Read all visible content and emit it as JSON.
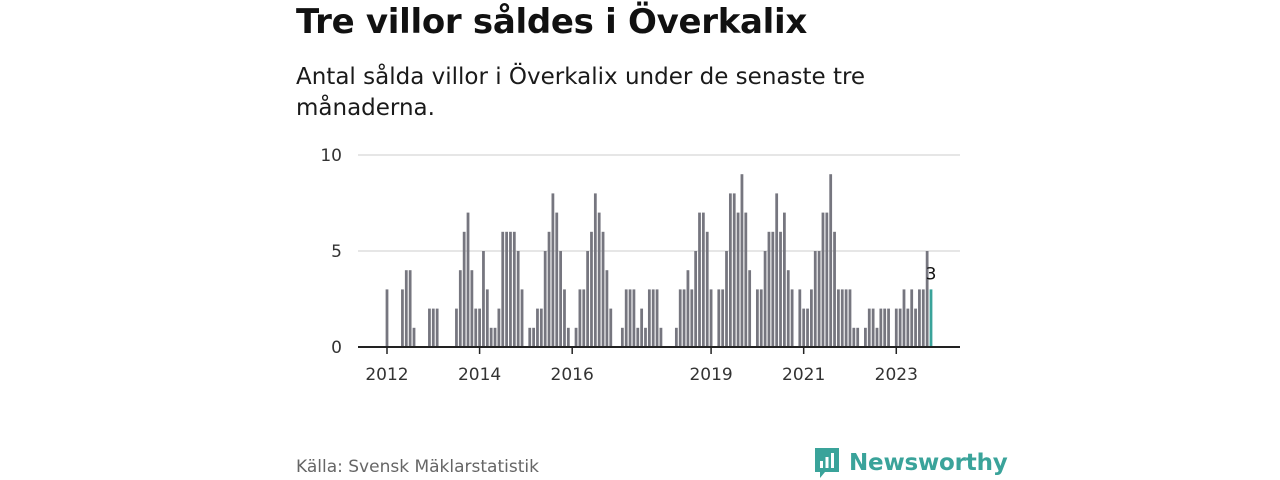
{
  "title": "Tre villor såldes i Överkalix",
  "subtitle": "Antal sålda villor i Överkalix under de senaste tre månaderna.",
  "source": "Källa: Svensk Mäklarstatistik",
  "brand": "Newsworthy",
  "colors": {
    "bar": "#76767f",
    "highlight": "#3aa39a",
    "grid": "#d6d6d6",
    "axis": "#222222"
  },
  "chart_data": {
    "type": "bar",
    "ylim": [
      0,
      10
    ],
    "yticks": [
      0,
      5,
      10
    ],
    "start": "2012-01",
    "x_tick_labels": [
      {
        "label": "2012",
        "index": 0
      },
      {
        "label": "2014",
        "index": 24
      },
      {
        "label": "2016",
        "index": 48
      },
      {
        "label": "2019",
        "index": 84
      },
      {
        "label": "2021",
        "index": 108
      },
      {
        "label": "2023",
        "index": 132
      }
    ],
    "values": [
      3,
      0,
      0,
      0,
      3,
      4,
      4,
      1,
      0,
      0,
      0,
      2,
      2,
      2,
      0,
      0,
      0,
      0,
      2,
      4,
      6,
      7,
      4,
      2,
      2,
      5,
      3,
      1,
      1,
      2,
      6,
      6,
      6,
      6,
      5,
      3,
      0,
      1,
      1,
      2,
      2,
      5,
      6,
      8,
      7,
      5,
      3,
      1,
      0,
      1,
      3,
      3,
      5,
      6,
      8,
      7,
      6,
      4,
      2,
      0,
      0,
      1,
      3,
      3,
      3,
      1,
      2,
      1,
      3,
      3,
      3,
      1,
      0,
      0,
      0,
      1,
      3,
      3,
      4,
      3,
      5,
      7,
      7,
      6,
      3,
      0,
      3,
      3,
      5,
      8,
      8,
      7,
      9,
      7,
      4,
      0,
      3,
      3,
      5,
      6,
      6,
      8,
      6,
      7,
      4,
      3,
      0,
      3,
      2,
      2,
      3,
      5,
      5,
      7,
      7,
      9,
      6,
      3,
      3,
      3,
      3,
      1,
      1,
      0,
      1,
      2,
      2,
      1,
      2,
      2,
      2,
      0,
      2,
      2,
      3,
      2,
      3,
      2,
      3,
      3,
      5,
      3
    ],
    "highlight_label": "3"
  }
}
